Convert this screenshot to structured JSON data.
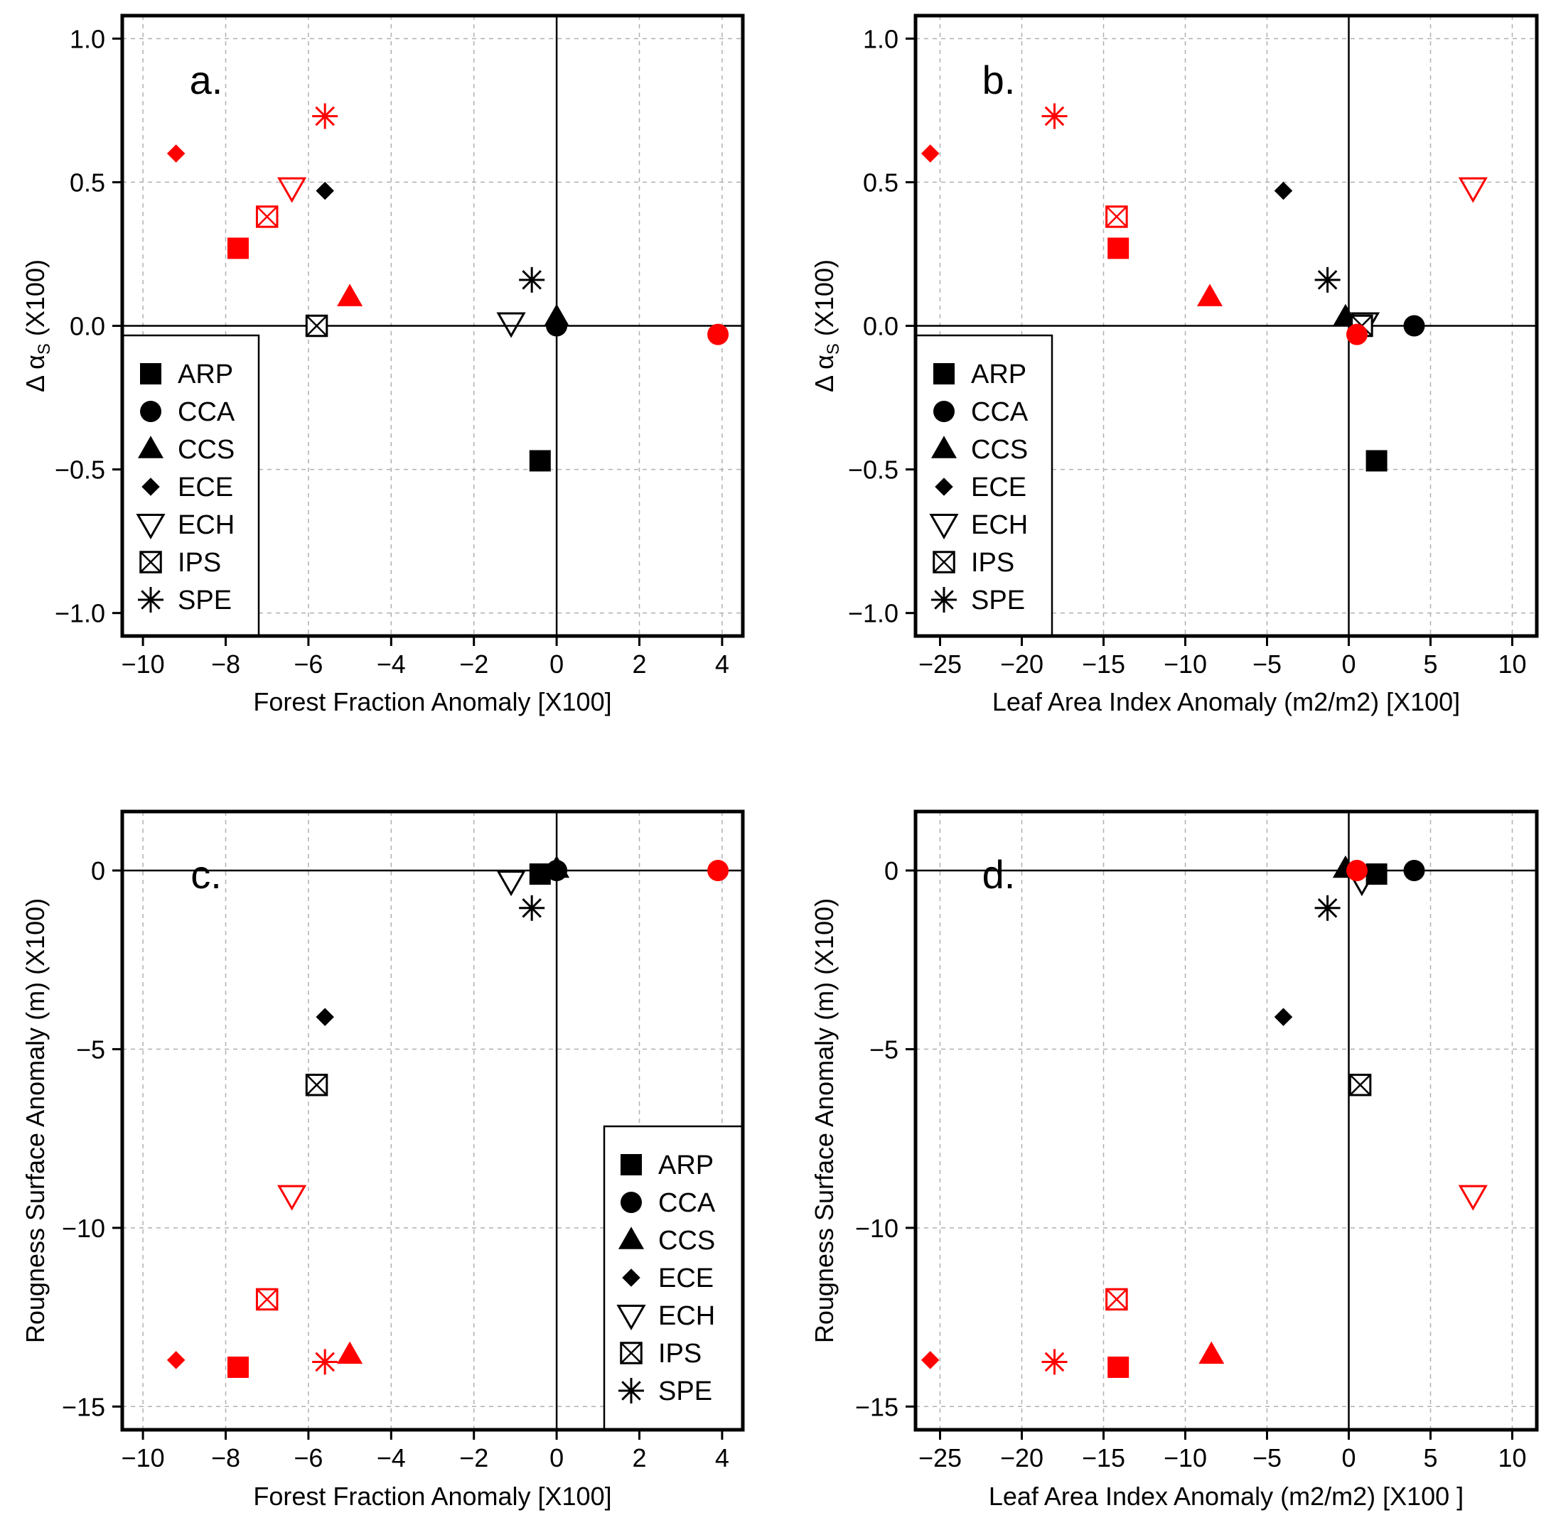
{
  "colors": {
    "red": "#ff0000",
    "black": "#000000",
    "grid": "#b0b0b0"
  },
  "models": [
    "ARP",
    "CCA",
    "CCS",
    "ECE",
    "ECH",
    "IPS",
    "SPE"
  ],
  "marker_shapes": {
    "ARP": "square",
    "CCA": "circle",
    "CCS": "triangle",
    "ECE": "diamond",
    "ECH": "triangle-down-open",
    "IPS": "box-x",
    "SPE": "asterisk"
  },
  "chart_data": [
    {
      "type": "scatter",
      "panel": "a.",
      "xlabel": "Forest Fraction Anomaly [X100]",
      "ylabel": {
        "prefix": "Δ α",
        "subscript": "S",
        "suffix": " (X100)"
      },
      "xlim": [
        -10.5,
        4.5
      ],
      "ylim": [
        -1.08,
        1.08
      ],
      "xticks": [
        -10,
        -8,
        -6,
        -4,
        -2,
        0,
        2,
        4
      ],
      "xtick_labels": [
        "−10",
        "−8",
        "−6",
        "−4",
        "−2",
        "0",
        "2",
        "4"
      ],
      "yticks": [
        1.0,
        0.5,
        0.0,
        -0.5,
        -1.0
      ],
      "ytick_labels": [
        "1.0",
        "0.5",
        "0.0",
        "−0.5",
        "−1.0"
      ],
      "grid": true,
      "legend": {
        "location": "lower-left",
        "entries": [
          "ARP",
          "CCA",
          "CCS",
          "ECE",
          "ECH",
          "IPS",
          "SPE"
        ]
      },
      "series": [
        {
          "name": "black",
          "color": "#000000",
          "points": [
            {
              "model": "ARP",
              "x": -0.4,
              "y": -0.47
            },
            {
              "model": "CCA",
              "x": 0.0,
              "y": 0.0
            },
            {
              "model": "CCS",
              "x": 0.0,
              "y": 0.03
            },
            {
              "model": "ECE",
              "x": -5.6,
              "y": 0.47
            },
            {
              "model": "ECH",
              "x": -1.1,
              "y": 0.01
            },
            {
              "model": "IPS",
              "x": -5.8,
              "y": 0.0
            },
            {
              "model": "SPE",
              "x": -0.6,
              "y": 0.16
            }
          ]
        },
        {
          "name": "red",
          "color": "#ff0000",
          "points": [
            {
              "model": "ARP",
              "x": -7.7,
              "y": 0.27
            },
            {
              "model": "CCA",
              "x": 3.9,
              "y": -0.03
            },
            {
              "model": "CCS",
              "x": -5.0,
              "y": 0.1
            },
            {
              "model": "ECE",
              "x": -9.2,
              "y": 0.6
            },
            {
              "model": "ECH",
              "x": -6.4,
              "y": 0.48
            },
            {
              "model": "IPS",
              "x": -7.0,
              "y": 0.38
            },
            {
              "model": "SPE",
              "x": -5.6,
              "y": 0.73
            }
          ]
        }
      ]
    },
    {
      "type": "scatter",
      "panel": "b.",
      "xlabel": "Leaf Area Index Anomaly  (m2/m2)  [X100]",
      "ylabel": {
        "prefix": "Δ α",
        "subscript": "S",
        "suffix": " (X100)"
      },
      "xlim": [
        -26.5,
        11.5
      ],
      "ylim": [
        -1.08,
        1.08
      ],
      "xticks": [
        -25,
        -20,
        -15,
        -10,
        -5,
        0,
        5,
        10
      ],
      "xtick_labels": [
        "−25",
        "−20",
        "−15",
        "−10",
        "−5",
        "0",
        "5",
        "10"
      ],
      "yticks": [
        1.0,
        0.5,
        0.0,
        -0.5,
        -1.0
      ],
      "ytick_labels": [
        "1.0",
        "0.5",
        "0.0",
        "−0.5",
        "−1.0"
      ],
      "grid": true,
      "legend": {
        "location": "lower-left",
        "entries": [
          "ARP",
          "CCA",
          "CCS",
          "ECE",
          "ECH",
          "IPS",
          "SPE"
        ]
      },
      "series": [
        {
          "name": "black",
          "color": "#000000",
          "points": [
            {
              "model": "ARP",
              "x": 1.7,
              "y": -0.47
            },
            {
              "model": "CCA",
              "x": 4.0,
              "y": 0.0
            },
            {
              "model": "CCS",
              "x": -0.2,
              "y": 0.03
            },
            {
              "model": "ECE",
              "x": -4.0,
              "y": 0.47
            },
            {
              "model": "ECH",
              "x": 1.0,
              "y": 0.01
            },
            {
              "model": "IPS",
              "x": 0.8,
              "y": 0.0
            },
            {
              "model": "SPE",
              "x": -1.3,
              "y": 0.16
            }
          ]
        },
        {
          "name": "red",
          "color": "#ff0000",
          "points": [
            {
              "model": "ARP",
              "x": -14.1,
              "y": 0.27
            },
            {
              "model": "CCA",
              "x": 0.5,
              "y": -0.03
            },
            {
              "model": "CCS",
              "x": -8.5,
              "y": 0.1
            },
            {
              "model": "ECE",
              "x": -25.6,
              "y": 0.6
            },
            {
              "model": "ECH",
              "x": 7.6,
              "y": 0.48
            },
            {
              "model": "IPS",
              "x": -14.2,
              "y": 0.38
            },
            {
              "model": "SPE",
              "x": -18.0,
              "y": 0.73
            }
          ]
        }
      ]
    },
    {
      "type": "scatter",
      "panel": "c.",
      "xlabel": "Forest Fraction Anomaly [X100]",
      "ylabel": {
        "prefix": "Rougness  Surface  Anomaly  (m)  (X100)",
        "subscript": "",
        "suffix": ""
      },
      "xlim": [
        -10.5,
        4.5
      ],
      "ylim": [
        -15.65,
        1.65
      ],
      "xticks": [
        -10,
        -8,
        -6,
        -4,
        -2,
        0,
        2,
        4
      ],
      "xtick_labels": [
        "−10",
        "−8",
        "−6",
        "−4",
        "−2",
        "0",
        "2",
        "4"
      ],
      "yticks": [
        0,
        -5,
        -10,
        -15
      ],
      "ytick_labels": [
        "0",
        "−5",
        "−10",
        "−15"
      ],
      "grid": true,
      "legend": {
        "location": "lower-right",
        "entries": [
          "ARP",
          "CCA",
          "CCS",
          "ECE",
          "ECH",
          "IPS",
          "SPE"
        ]
      },
      "series": [
        {
          "name": "black",
          "color": "#000000",
          "points": [
            {
              "model": "ARP",
              "x": -0.4,
              "y": -0.1
            },
            {
              "model": "CCA",
              "x": 0.0,
              "y": 0.0
            },
            {
              "model": "CCS",
              "x": 0.0,
              "y": 0.05
            },
            {
              "model": "ECE",
              "x": -5.6,
              "y": -4.1
            },
            {
              "model": "ECH",
              "x": -1.1,
              "y": -0.3
            },
            {
              "model": "IPS",
              "x": -5.8,
              "y": -6.0
            },
            {
              "model": "SPE",
              "x": -0.6,
              "y": -1.05
            }
          ]
        },
        {
          "name": "red",
          "color": "#ff0000",
          "points": [
            {
              "model": "ARP",
              "x": -7.7,
              "y": -13.9
            },
            {
              "model": "CCA",
              "x": 3.9,
              "y": 0.0
            },
            {
              "model": "CCS",
              "x": -5.0,
              "y": -13.55
            },
            {
              "model": "ECE",
              "x": -9.2,
              "y": -13.7
            },
            {
              "model": "ECH",
              "x": -6.4,
              "y": -9.1
            },
            {
              "model": "IPS",
              "x": -7.0,
              "y": -12.0
            },
            {
              "model": "SPE",
              "x": -5.6,
              "y": -13.75
            }
          ]
        }
      ]
    },
    {
      "type": "scatter",
      "panel": "d.",
      "xlabel": "Leaf Area Index Anomaly  (m2/m2) [X100 ]",
      "ylabel": {
        "prefix": "Rougness  Surface  Anomaly  (m)  (X100)",
        "subscript": "",
        "suffix": ""
      },
      "xlim": [
        -26.5,
        11.5
      ],
      "ylim": [
        -15.65,
        1.65
      ],
      "xticks": [
        -25,
        -20,
        -15,
        -10,
        -5,
        0,
        5,
        10
      ],
      "xtick_labels": [
        "−25",
        "−20",
        "−15",
        "−10",
        "−5",
        "0",
        "5",
        "10"
      ],
      "yticks": [
        0,
        -5,
        -10,
        -15
      ],
      "ytick_labels": [
        "0",
        "−5",
        "−10",
        "−15"
      ],
      "grid": true,
      "legend": null,
      "series": [
        {
          "name": "black",
          "color": "#000000",
          "points": [
            {
              "model": "ARP",
              "x": 1.7,
              "y": -0.1
            },
            {
              "model": "CCA",
              "x": 4.0,
              "y": 0.0
            },
            {
              "model": "CCS",
              "x": -0.2,
              "y": 0.05
            },
            {
              "model": "ECE",
              "x": -4.0,
              "y": -4.1
            },
            {
              "model": "ECH",
              "x": 0.8,
              "y": -0.3
            },
            {
              "model": "IPS",
              "x": 0.7,
              "y": -6.0
            },
            {
              "model": "SPE",
              "x": -1.3,
              "y": -1.05
            }
          ]
        },
        {
          "name": "red",
          "color": "#ff0000",
          "points": [
            {
              "model": "ARP",
              "x": -14.1,
              "y": -13.9
            },
            {
              "model": "CCA",
              "x": 0.5,
              "y": 0.0
            },
            {
              "model": "CCS",
              "x": -8.4,
              "y": -13.55
            },
            {
              "model": "ECE",
              "x": -25.6,
              "y": -13.7
            },
            {
              "model": "ECH",
              "x": 7.6,
              "y": -9.1
            },
            {
              "model": "IPS",
              "x": -14.2,
              "y": -12.0
            },
            {
              "model": "SPE",
              "x": -18.0,
              "y": -13.75
            }
          ]
        }
      ]
    }
  ]
}
